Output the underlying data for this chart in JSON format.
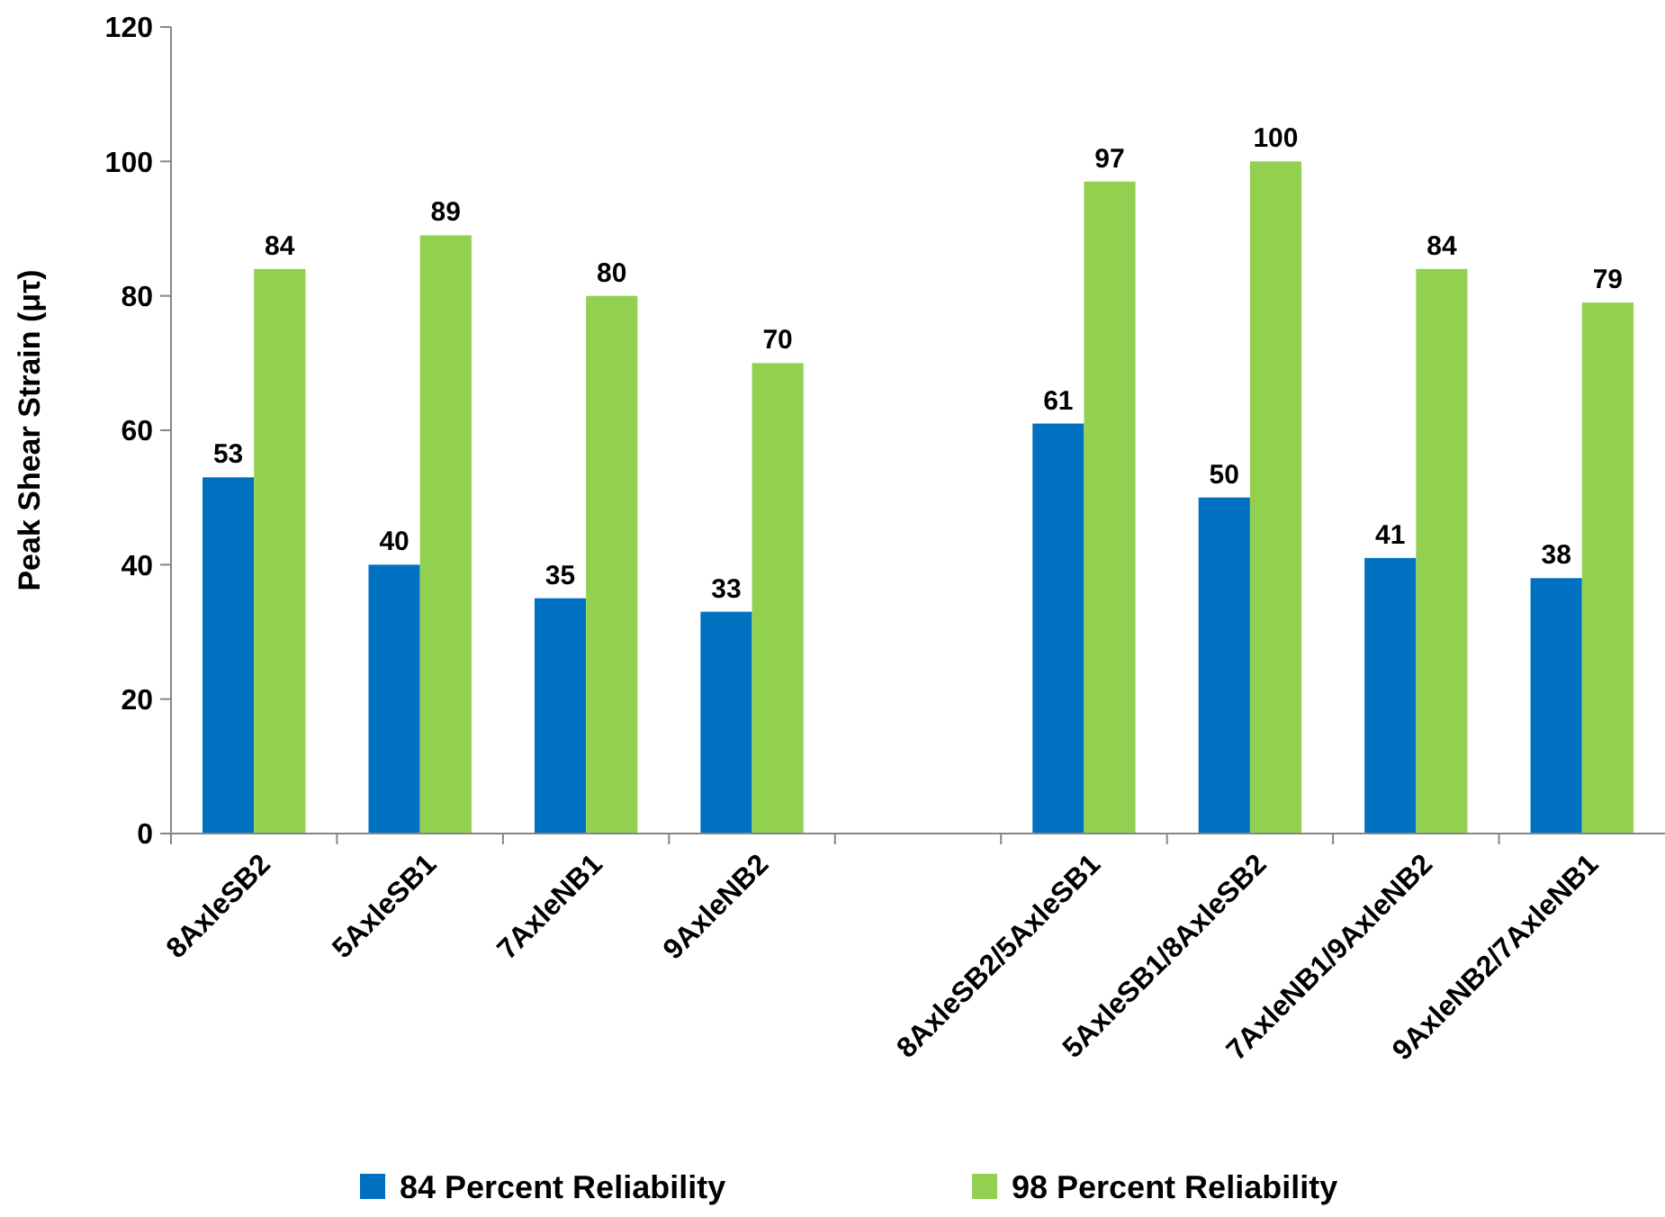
{
  "chart_data": {
    "type": "bar",
    "ylabel": "Peak Shear Strain (μτ)",
    "categories": [
      "8AxleSB2",
      "5AxleSB1",
      "7AxleNB1",
      "9AxleNB2",
      null,
      "8AxleSB2/5AxleSB1",
      "5AxleSB1/8AxleSB2",
      "7AxleNB1/9AxleNB2",
      "9AxleNB2/7AxleNB1"
    ],
    "series": [
      {
        "name": "84 Percent Reliability",
        "color": "#0070c0",
        "values": [
          53,
          40,
          35,
          33,
          null,
          61,
          50,
          41,
          38
        ]
      },
      {
        "name": "98 Percent Reliability",
        "color": "#92d050",
        "values": [
          84,
          89,
          80,
          70,
          null,
          97,
          100,
          84,
          79
        ]
      }
    ],
    "ylim": [
      0,
      120
    ],
    "yticks": [
      0,
      20,
      40,
      60,
      80,
      100,
      120
    ],
    "grid": false,
    "legend": "bottom",
    "data_labels": true
  }
}
